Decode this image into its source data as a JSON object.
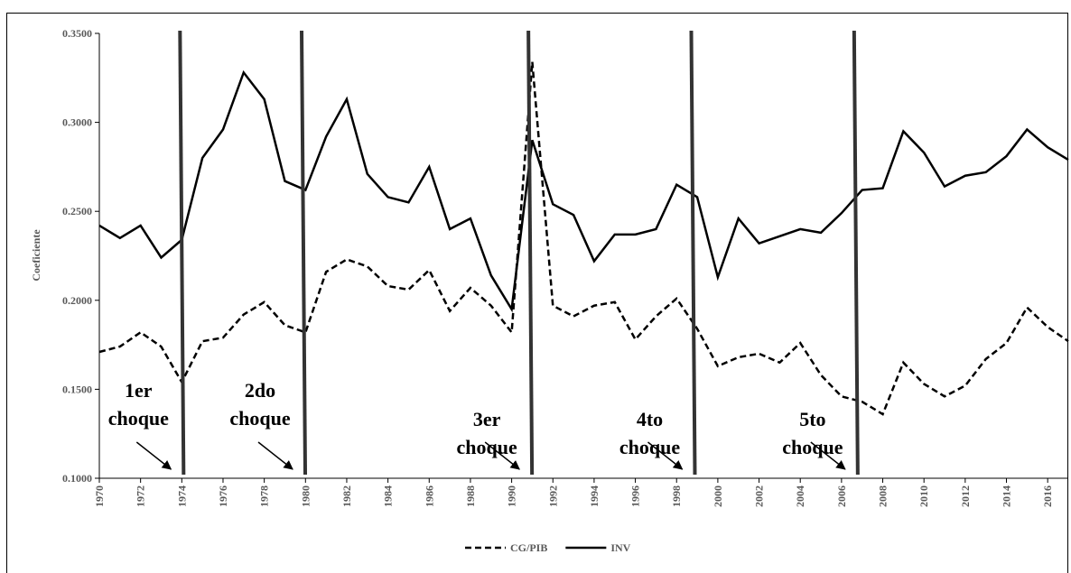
{
  "chart_data": {
    "type": "line",
    "y_label": "Coeficiente",
    "x": [
      1970,
      1971,
      1972,
      1973,
      1974,
      1975,
      1976,
      1977,
      1978,
      1979,
      1980,
      1981,
      1982,
      1983,
      1984,
      1985,
      1986,
      1987,
      1988,
      1989,
      1990,
      1991,
      1992,
      1993,
      1994,
      1995,
      1996,
      1997,
      1998,
      1999,
      2000,
      2001,
      2002,
      2003,
      2004,
      2005,
      2006,
      2007,
      2008,
      2009,
      2010,
      2011,
      2012,
      2013,
      2014,
      2015,
      2016,
      2017
    ],
    "xlim": [
      1970,
      2017
    ],
    "xticks": [
      1970,
      1972,
      1974,
      1976,
      1978,
      1980,
      1982,
      1984,
      1986,
      1988,
      1990,
      1992,
      1994,
      1996,
      1998,
      2000,
      2002,
      2004,
      2006,
      2008,
      2010,
      2012,
      2014,
      2016
    ],
    "ylim": [
      0.1,
      0.35
    ],
    "yticks": [
      {
        "value": 0.1,
        "label": "0.1000"
      },
      {
        "value": 0.15,
        "label": "0.1500"
      },
      {
        "value": 0.2,
        "label": "0.2000"
      },
      {
        "value": 0.25,
        "label": "0.2500"
      },
      {
        "value": 0.3,
        "label": "0.3000"
      },
      {
        "value": 0.35,
        "label": "0.3500"
      }
    ],
    "series": [
      {
        "name": "CG/PIB",
        "color": "#000000",
        "line_style": "dashed",
        "values": [
          0.171,
          0.174,
          0.182,
          0.174,
          0.154,
          0.177,
          0.179,
          0.192,
          0.199,
          0.186,
          0.182,
          0.216,
          0.223,
          0.219,
          0.208,
          0.206,
          0.217,
          0.194,
          0.207,
          0.197,
          0.182,
          0.334,
          0.197,
          0.191,
          0.197,
          0.199,
          0.178,
          0.191,
          0.201,
          0.184,
          0.163,
          0.168,
          0.17,
          0.165,
          0.176,
          0.158,
          0.146,
          0.143,
          0.136,
          0.165,
          0.153,
          0.146,
          0.152,
          0.167,
          0.176,
          0.196,
          0.185,
          0.177
        ]
      },
      {
        "name": "INV",
        "color": "#000000",
        "line_style": "solid",
        "values": [
          0.242,
          0.235,
          0.242,
          0.224,
          0.234,
          0.28,
          0.296,
          0.328,
          0.313,
          0.267,
          0.262,
          0.292,
          0.313,
          0.271,
          0.258,
          0.255,
          0.275,
          0.24,
          0.246,
          0.214,
          0.195,
          0.29,
          0.254,
          0.248,
          0.222,
          0.237,
          0.237,
          0.24,
          0.265,
          0.258,
          0.213,
          0.246,
          0.232,
          0.236,
          0.24,
          0.238,
          0.249,
          0.262,
          0.263,
          0.295,
          0.283,
          0.264,
          0.27,
          0.272,
          0.281,
          0.296,
          0.286,
          0.279
        ]
      }
    ],
    "shocks": [
      {
        "x": 1974,
        "label": [
          "1er",
          "choque"
        ]
      },
      {
        "x": 1979.9,
        "label": [
          "2do",
          "choque"
        ]
      },
      {
        "x": 1990.9,
        "label": [
          "3er",
          "choque"
        ]
      },
      {
        "x": 1998.8,
        "label": [
          "4to",
          "choque"
        ]
      },
      {
        "x": 2006.7,
        "label": [
          "5to",
          "choque"
        ]
      }
    ],
    "legend": "bottom"
  }
}
